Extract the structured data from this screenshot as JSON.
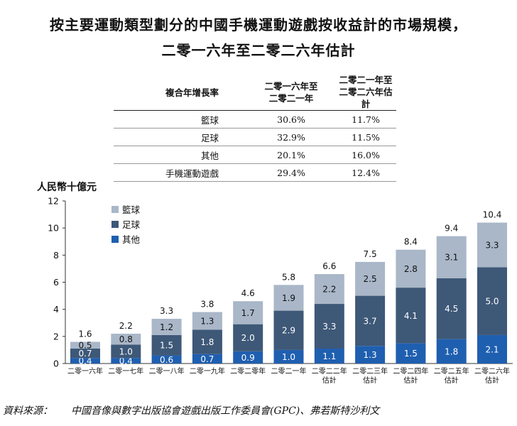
{
  "title_line1": "按主要運動類型劃分的中國手機運動遊戲按收益計的市場規模，",
  "title_line2": "二零一六年至二零二六年估計",
  "cagr_table": {
    "header_label": "複合年增長率",
    "col1_line1": "二零一六年至",
    "col1_line2": "二零二一年",
    "col2_line1": "二零二一年至",
    "col2_line2": "二零二六年估計",
    "rows": [
      {
        "label": "籃球",
        "v1": "30.6%",
        "v2": "11.7%"
      },
      {
        "label": "足球",
        "v1": "32.9%",
        "v2": "11.5%"
      },
      {
        "label": "其他",
        "v1": "20.1%",
        "v2": "16.0%"
      },
      {
        "label": "手機運動遊戲",
        "v1": "29.4%",
        "v2": "12.4%"
      }
    ]
  },
  "source_label": "資料來源：",
  "source_text": "中國音像與數字出版協會遊戲出版工作委員會(GPC)、弗若斯特沙利文",
  "chart_data": {
    "type": "bar",
    "stacked": true,
    "ylabel": "人民幣十億元",
    "ylim": [
      0,
      12
    ],
    "yticks": [
      0,
      2,
      4,
      6,
      8,
      10,
      12
    ],
    "categories": [
      [
        "二零一六年"
      ],
      [
        "二零一七年"
      ],
      [
        "二零一八年"
      ],
      [
        "二零一九年"
      ],
      [
        "二零二零年"
      ],
      [
        "二零二一年"
      ],
      [
        "二零二二年",
        "估計"
      ],
      [
        "二零二三年",
        "估計"
      ],
      [
        "二零二四年",
        "估計"
      ],
      [
        "二零二五年",
        "估計"
      ],
      [
        "二零二六年",
        "估計"
      ]
    ],
    "series": [
      {
        "name": "其他",
        "color": "#1f5fb0",
        "text_color": "#ffffff",
        "values": [
          0.4,
          0.4,
          0.6,
          0.7,
          0.9,
          1.0,
          1.1,
          1.3,
          1.5,
          1.8,
          2.1
        ],
        "labels": [
          "0.4",
          "0.4",
          "0.6",
          "0.7",
          "0.9",
          "1.0",
          "1.1",
          "1.3",
          "1.5",
          "1.8",
          "2.1"
        ]
      },
      {
        "name": "足球",
        "color": "#3e5878",
        "text_color": "#ffffff",
        "values": [
          0.7,
          1.0,
          1.5,
          1.8,
          2.0,
          2.9,
          3.3,
          3.7,
          4.1,
          4.5,
          5.0
        ],
        "labels": [
          "0.7",
          "1.0",
          "1.5",
          "1.8",
          "2.0",
          "2.9",
          "3.3",
          "3.7",
          "4.1",
          "4.5",
          "5.0"
        ]
      },
      {
        "name": "籃球",
        "color": "#a9b7c8",
        "text_color": "#111111",
        "values": [
          0.5,
          0.8,
          1.2,
          1.3,
          1.7,
          1.9,
          2.2,
          2.5,
          2.8,
          3.1,
          3.3
        ],
        "labels": [
          "0.5",
          "0.8",
          "1.2",
          "1.3",
          "1.7",
          "1.9",
          "2.2",
          "2.5",
          "2.8",
          "3.1",
          "3.3"
        ]
      }
    ],
    "totals": [
      "1.6",
      "2.2",
      "3.3",
      "3.8",
      "4.6",
      "5.8",
      "6.6",
      "7.5",
      "8.4",
      "9.4",
      "10.4"
    ],
    "legend": [
      "籃球",
      "足球",
      "其他"
    ],
    "legend_placement": "top-left",
    "grid": false
  }
}
